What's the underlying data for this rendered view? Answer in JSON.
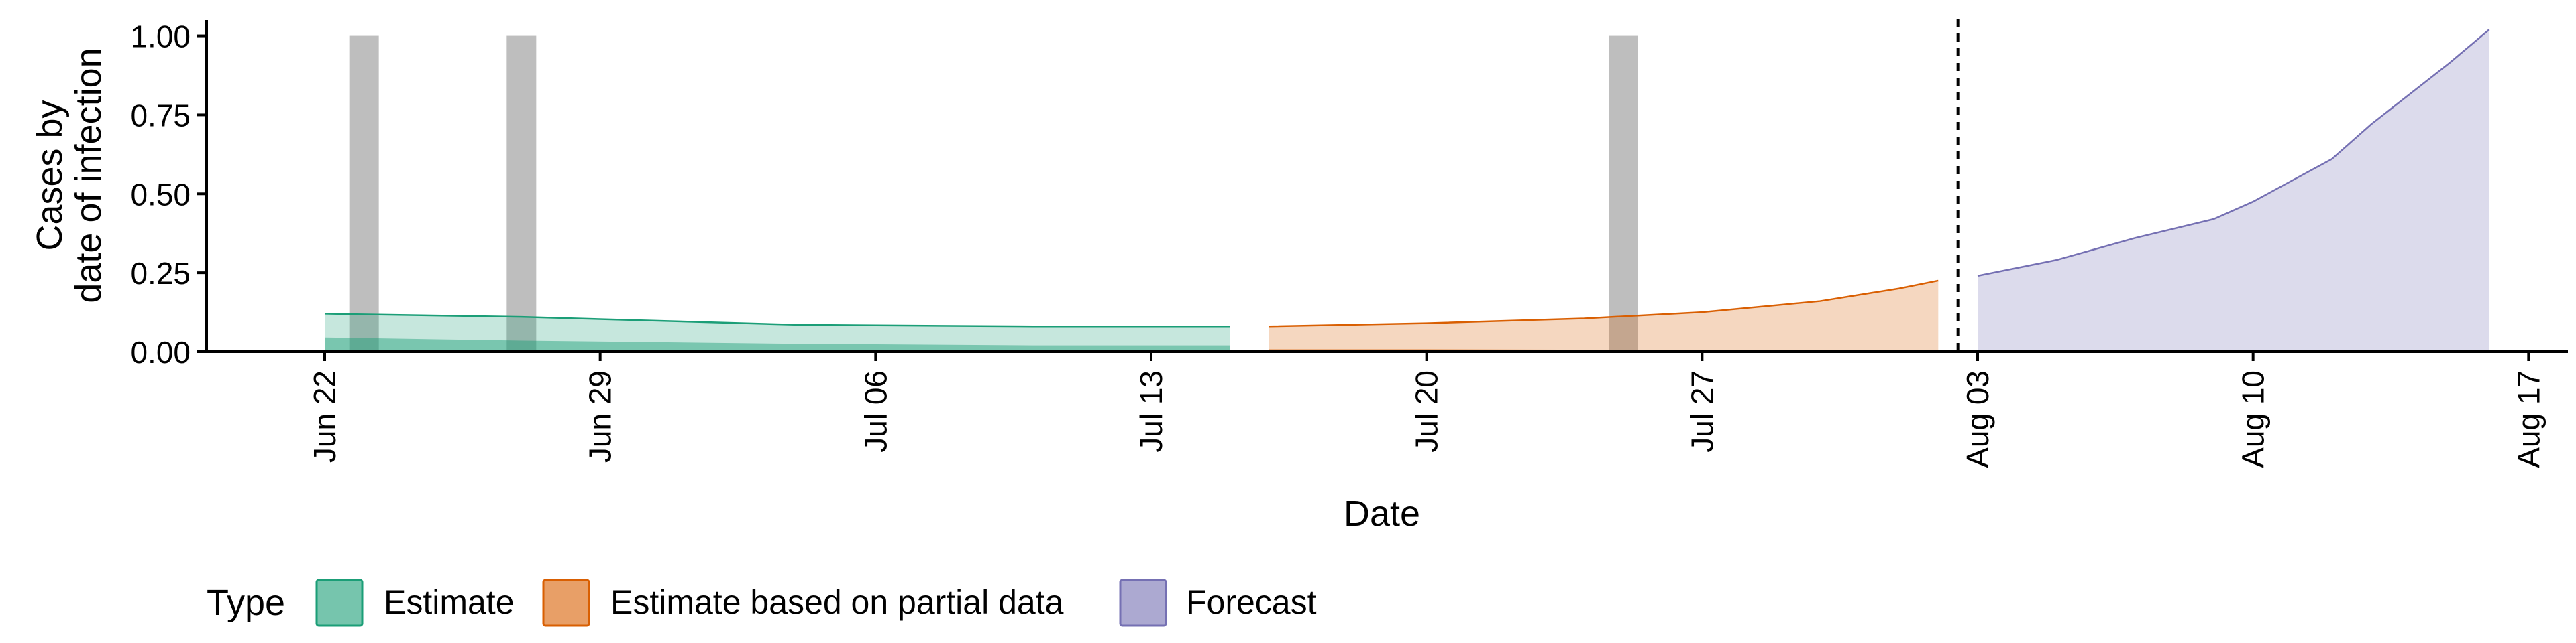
{
  "chart_data": {
    "type": "area",
    "xlabel": "Date",
    "ylabel_lines": [
      "Cases by",
      "date of infection"
    ],
    "ylim": [
      0,
      1.05
    ],
    "xlim": [
      "2020-06-19",
      "2020-08-18"
    ],
    "x_ticks": [
      "Jun 22",
      "Jun 29",
      "Jul 06",
      "Jul 13",
      "Jul 20",
      "Jul 27",
      "Aug 03",
      "Aug 10",
      "Aug 17"
    ],
    "x_tick_dates": [
      "2020-06-22",
      "2020-06-29",
      "2020-07-06",
      "2020-07-13",
      "2020-07-20",
      "2020-07-27",
      "2020-08-03",
      "2020-08-10",
      "2020-08-17"
    ],
    "y_ticks": [
      "0.00",
      "0.25",
      "0.50",
      "0.75",
      "1.00"
    ],
    "y_tick_values": [
      0,
      0.25,
      0.5,
      0.75,
      1.0
    ],
    "grid": false,
    "forecast_cutoff_date": "2020-08-02",
    "highlight_bars": [
      {
        "date": "2020-06-23",
        "value": 1.0
      },
      {
        "date": "2020-06-27",
        "value": 1.0
      },
      {
        "date": "2020-07-25",
        "value": 1.0
      }
    ],
    "legend": {
      "title": "Type",
      "position": "bottom-left",
      "items": [
        {
          "label": "Estimate",
          "fill": "#1b9e77"
        },
        {
          "label": "Estimate based on partial data",
          "fill": "#d95f02"
        },
        {
          "label": "Forecast",
          "fill": "#7570b3"
        }
      ]
    },
    "series": [
      {
        "type_label": "Estimate",
        "color": "#1b9e77",
        "x": [
          "2020-06-22",
          "2020-06-27",
          "2020-07-04",
          "2020-07-10",
          "2020-07-15"
        ],
        "upper": [
          0.12,
          0.11,
          0.085,
          0.08,
          0.08
        ],
        "inner_upper": [
          0.045,
          0.035,
          0.025,
          0.02,
          0.02
        ],
        "lower": [
          0.0,
          0.0,
          0.0,
          0.0,
          0.0
        ]
      },
      {
        "type_label": "Estimate based on partial data",
        "color": "#d95f02",
        "x": [
          "2020-07-16",
          "2020-07-20",
          "2020-07-24",
          "2020-07-27",
          "2020-07-30",
          "2020-08-01",
          "2020-08-02"
        ],
        "upper": [
          0.08,
          0.09,
          0.105,
          0.125,
          0.16,
          0.2,
          0.225
        ],
        "inner_upper": [
          0.008,
          0.008,
          0.006,
          0.005,
          0.004,
          0.003,
          0.003
        ],
        "lower": [
          0.0,
          0.0,
          0.0,
          0.0,
          0.0,
          0.0,
          0.0
        ]
      },
      {
        "type_label": "Forecast",
        "color": "#7570b3",
        "x": [
          "2020-08-03",
          "2020-08-05",
          "2020-08-07",
          "2020-08-09",
          "2020-08-10",
          "2020-08-12",
          "2020-08-13",
          "2020-08-15",
          "2020-08-16"
        ],
        "upper": [
          0.24,
          0.29,
          0.36,
          0.42,
          0.475,
          0.61,
          0.72,
          0.915,
          1.02
        ],
        "inner_upper": [
          0.004,
          0.004,
          0.004,
          0.004,
          0.004,
          0.004,
          0.004,
          0.004,
          0.004
        ],
        "lower": [
          0.0,
          0.0,
          0.0,
          0.0,
          0.0,
          0.0,
          0.0,
          0.0,
          0.0
        ]
      }
    ]
  }
}
